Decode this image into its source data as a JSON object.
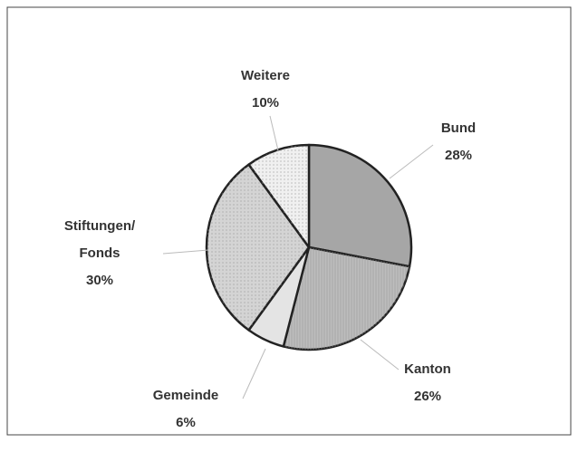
{
  "chart_data": {
    "type": "pie",
    "categories": [
      "Bund",
      "Kanton",
      "Gemeinde",
      "Stiftungen/Fonds",
      "Weitere"
    ],
    "values": [
      28,
      26,
      6,
      30,
      10
    ],
    "value_labels": [
      "28%",
      "26%",
      "6%",
      "30%",
      "10%"
    ],
    "colors": [
      "#a6a6a6",
      "#bdbdbd",
      "#e4e4e4",
      "#d4d4d4",
      "#f0f0f0"
    ]
  }
}
